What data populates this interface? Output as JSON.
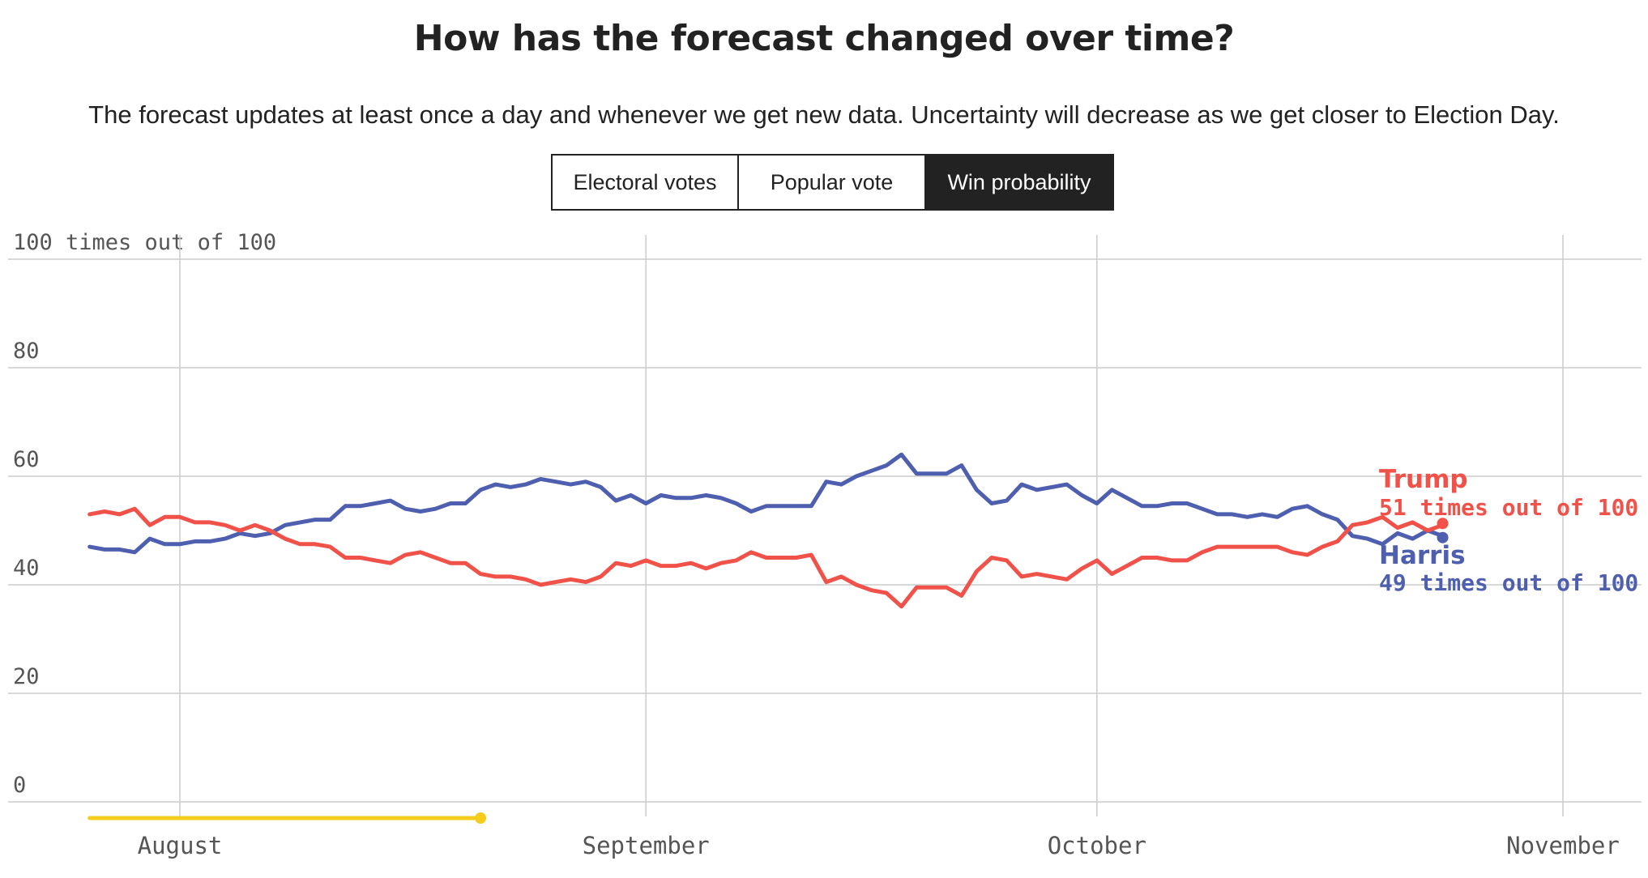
{
  "header": {
    "title": "How has the forecast changed over time?",
    "subtitle": "The forecast updates at least once a day and whenever we get new data. Uncertainty will decrease as we get closer to Election Day."
  },
  "tabs": [
    {
      "label": "Electoral votes",
      "active": false
    },
    {
      "label": "Popular vote",
      "active": false
    },
    {
      "label": "Win probability",
      "active": true
    }
  ],
  "colors": {
    "trump": "#f0524a",
    "harris": "#4e5fb0",
    "timeline": "#f5cc1b",
    "grid": "#cccccc"
  },
  "chart_data": {
    "type": "line",
    "y_unit_label": "100 times out of 100",
    "ylim": [
      0,
      100
    ],
    "y_ticks": [
      0,
      20,
      40,
      60,
      80,
      100
    ],
    "x_ticks": [
      {
        "date": "2024-08-01",
        "label": "August"
      },
      {
        "date": "2024-09-01",
        "label": "September"
      },
      {
        "date": "2024-10-01",
        "label": "October"
      },
      {
        "date": "2024-11-01",
        "label": "November"
      }
    ],
    "grid": true,
    "x_start": "2024-07-26",
    "x_end": "2024-10-24",
    "series": [
      {
        "name": "Trump",
        "label_value": "51 times out of 100",
        "values": [
          53,
          53.5,
          53,
          54,
          51,
          52.5,
          52.5,
          51.5,
          51.5,
          51,
          50,
          51,
          50,
          48.5,
          47.5,
          47.5,
          47,
          45,
          45,
          44.5,
          44,
          45.5,
          46,
          45,
          44,
          44,
          42,
          41.5,
          41.5,
          41,
          40,
          40.5,
          41,
          40.5,
          41.5,
          44,
          43.5,
          44.5,
          43.5,
          43.5,
          44,
          43,
          44,
          44.5,
          46,
          45,
          45,
          45,
          45.5,
          40.5,
          41.5,
          40,
          39,
          38.5,
          36,
          39.5,
          39.5,
          39.5,
          38,
          42.5,
          45,
          44.5,
          41.5,
          42,
          41.5,
          41,
          43,
          44.5,
          42,
          43.5,
          45,
          45,
          44.5,
          44.5,
          46,
          47,
          47,
          47,
          47,
          47,
          46,
          45.5,
          47,
          48,
          51,
          51.5,
          52.5,
          50.5,
          51.5,
          50,
          51
        ]
      },
      {
        "name": "Harris",
        "label_value": "49 times out of 100",
        "values": [
          47,
          46.5,
          46.5,
          46,
          48.5,
          47.5,
          47.5,
          48,
          48,
          48.5,
          49.5,
          49,
          49.5,
          51,
          51.5,
          52,
          52,
          54.5,
          54.5,
          55,
          55.5,
          54,
          53.5,
          54,
          55,
          55,
          57.5,
          58.5,
          58,
          58.5,
          59.5,
          59,
          58.5,
          59,
          58,
          55.5,
          56.5,
          55,
          56.5,
          56,
          56,
          56.5,
          56,
          55,
          53.5,
          54.5,
          54.5,
          54.5,
          54.5,
          59,
          58.5,
          60,
          61,
          62,
          64,
          60.5,
          60.5,
          60.5,
          62,
          57.5,
          55,
          55.5,
          58.5,
          57.5,
          58,
          58.5,
          56.5,
          55,
          57.5,
          56,
          54.5,
          54.5,
          55,
          55,
          54,
          53,
          53,
          52.5,
          53,
          52.5,
          54,
          54.5,
          53,
          52,
          49,
          48.5,
          47.5,
          49.5,
          48.5,
          50,
          49
        ]
      }
    ],
    "timeline_end": "2024-08-21"
  }
}
